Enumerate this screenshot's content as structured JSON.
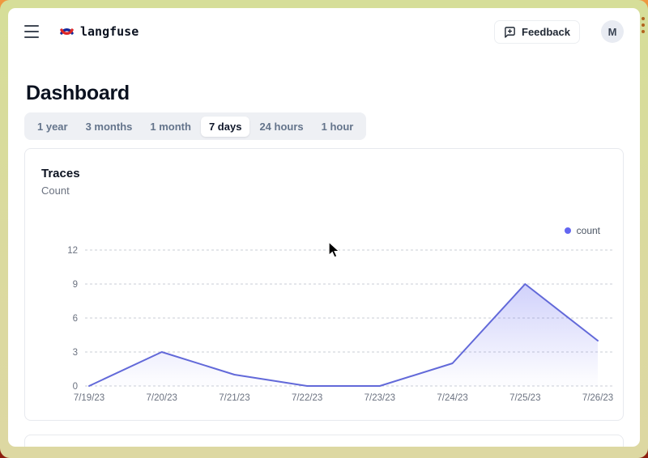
{
  "header": {
    "app_name": "langfuse",
    "feedback_label": "Feedback",
    "avatar_initial": "M",
    "icons": {
      "menu": "hamburger-menu",
      "logo": "langfuse-knot",
      "feedback": "message-square-plus"
    }
  },
  "page": {
    "title": "Dashboard"
  },
  "time_tabs": {
    "options": [
      "1 year",
      "3 months",
      "1 month",
      "7 days",
      "24 hours",
      "1 hour"
    ],
    "active": "7 days"
  },
  "traces_card": {
    "title": "Traces",
    "subtitle": "Count",
    "legend": [
      {
        "label": "count",
        "color": "#6366f1"
      }
    ]
  },
  "chart_data": {
    "type": "area",
    "title": "Traces",
    "xlabel": "",
    "ylabel": "Count",
    "x": [
      "7/19/23",
      "7/20/23",
      "7/21/23",
      "7/22/23",
      "7/23/23",
      "7/24/23",
      "7/25/23",
      "7/26/23"
    ],
    "series": [
      {
        "name": "count",
        "values": [
          0,
          3,
          1,
          0,
          0,
          2,
          9,
          4
        ]
      }
    ],
    "ylim": [
      0,
      12
    ],
    "yticks": [
      0,
      3,
      6,
      9,
      12
    ],
    "grid": "horizontal-dashed",
    "legend_position": "top-right",
    "line_color": "#6269d9",
    "area_color": "#6366f1",
    "grid_color": "#c9cdd4",
    "tick_color": "#6b7280"
  },
  "colors": {
    "accent": "#6366f1",
    "text_dark": "#0b1220",
    "text_muted": "#6b7280"
  }
}
